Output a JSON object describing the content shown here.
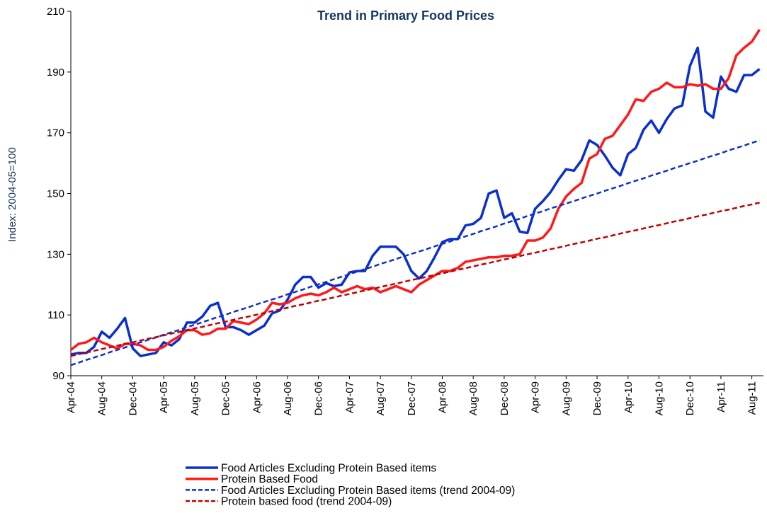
{
  "chart_data": {
    "type": "line",
    "title": "Trend in Primary Food Prices",
    "y_label": "Index: 2004-05=100",
    "categories": [
      "Apr-04",
      null,
      null,
      null,
      "Aug-04",
      null,
      null,
      null,
      "Dec-04",
      null,
      null,
      null,
      "Apr-05",
      null,
      null,
      null,
      "Aug-05",
      null,
      null,
      null,
      "Dec-05",
      null,
      null,
      null,
      "Apr-06",
      null,
      null,
      null,
      "Aug-06",
      null,
      null,
      null,
      "Dec-06",
      null,
      null,
      null,
      "Apr-07",
      null,
      null,
      null,
      "Aug-07",
      null,
      null,
      null,
      "Dec-07",
      null,
      null,
      null,
      "Apr-08",
      null,
      null,
      null,
      "Aug-08",
      null,
      null,
      null,
      "Dec-08",
      null,
      null,
      null,
      "Apr-09",
      null,
      null,
      null,
      "Aug-09",
      null,
      null,
      null,
      "Dec-09",
      null,
      null,
      null,
      "Apr-10",
      null,
      null,
      null,
      "Aug-10",
      null,
      null,
      null,
      "Dec-10",
      null,
      null,
      null,
      "Apr-11",
      null,
      null,
      null,
      "Aug-11",
      null
    ],
    "series": [
      {
        "name": "Food Articles Excluding Protein Based items",
        "color": "#0a2fd0",
        "dashed": false,
        "values": [
          97,
          97.5,
          97.5,
          99.5,
          104.5,
          102.5,
          105.5,
          109,
          99,
          96.5,
          97,
          97.5,
          101,
          100,
          102,
          107.5,
          107.5,
          109.5,
          113,
          114,
          106,
          106,
          105,
          103.5,
          105,
          106.5,
          110.5,
          111.5,
          115,
          120,
          122.5,
          122.5,
          119,
          120.5,
          119.5,
          120,
          124,
          124.5,
          124.5,
          129.5,
          132.5,
          132.5,
          132.5,
          130,
          124.5,
          122,
          124.5,
          129,
          134,
          135,
          135,
          139.5,
          140,
          142,
          150,
          151,
          142,
          143.5,
          137.5,
          137,
          145,
          147.5,
          150.5,
          154.5,
          158,
          157.5,
          161,
          167.5,
          166,
          162.5,
          158.5,
          156,
          163,
          165,
          171,
          174,
          170,
          174.5,
          178,
          179,
          192,
          198,
          177,
          175,
          188.5,
          184.5,
          183.5,
          189,
          189,
          191
        ]
      },
      {
        "name": "Protein Based Food",
        "color": "#ff1a1a",
        "dashed": false,
        "values": [
          98.5,
          100.5,
          101,
          102.5,
          101,
          100,
          99,
          100.5,
          100.5,
          100,
          98.5,
          98.5,
          99.5,
          101.5,
          103,
          105,
          105,
          103.5,
          104,
          105.5,
          105.5,
          108,
          107.5,
          107,
          108.5,
          110.5,
          114,
          113.5,
          114,
          115.5,
          116.5,
          117,
          116.5,
          117.5,
          119,
          117.5,
          118.5,
          119.5,
          118.5,
          119,
          117.5,
          118.5,
          119.5,
          118.5,
          117.5,
          120,
          121.5,
          123,
          124.5,
          124.5,
          125.5,
          127.5,
          128,
          128.5,
          129,
          129,
          129.5,
          129.5,
          130,
          134.5,
          134.5,
          135.5,
          138.5,
          145,
          149,
          151.5,
          153.5,
          161.5,
          163,
          168,
          169,
          172.5,
          176,
          181,
          180.5,
          183.5,
          184.5,
          186.5,
          185,
          185,
          186,
          185.5,
          186,
          184.5,
          184.5,
          188,
          195.5,
          198,
          200,
          204
        ]
      },
      {
        "name": "Food Articles Excluding Protein Based items (trend 2004-09)",
        "color": "#0a2fd0",
        "dashed": true,
        "values": [
          93.5,
          94.3,
          95.2,
          96.0,
          96.8,
          97.7,
          98.5,
          99.3,
          100.2,
          101.0,
          101.8,
          102.6,
          103.5,
          104.3,
          105.1,
          106.0,
          106.8,
          107.6,
          108.5,
          109.3,
          110.1,
          111.0,
          111.8,
          112.6,
          113.5,
          114.3,
          115.1,
          115.9,
          116.8,
          117.6,
          118.4,
          119.3,
          120.1,
          120.9,
          121.8,
          122.6,
          123.4,
          124.3,
          125.1,
          125.9,
          126.8,
          127.6,
          128.4,
          129.3,
          130.1,
          130.9,
          131.7,
          132.6,
          133.4,
          134.2,
          135.1,
          135.9,
          136.7,
          137.6,
          138.4,
          139.2,
          140.1,
          140.9,
          141.7,
          142.6,
          143.4,
          144.2,
          145.1,
          145.9,
          146.7,
          147.5,
          148.4,
          149.2,
          150.0,
          150.9,
          151.7,
          152.5,
          153.4,
          154.2,
          155.0,
          155.9,
          156.7,
          157.5,
          158.4,
          159.2,
          160.0,
          160.8,
          161.7,
          162.5,
          163.3,
          164.2,
          165.0,
          165.8,
          166.7,
          167.5
        ]
      },
      {
        "name": "Protein based food (trend 2004-09)",
        "color": "#c00000",
        "dashed": true,
        "values": [
          96.5,
          97.1,
          97.6,
          98.2,
          98.8,
          99.3,
          99.9,
          100.5,
          101.0,
          101.6,
          102.2,
          102.7,
          103.3,
          103.9,
          104.4,
          105.0,
          105.6,
          106.1,
          106.7,
          107.3,
          107.8,
          108.4,
          109.0,
          109.5,
          110.1,
          110.7,
          111.3,
          111.8,
          112.4,
          113.0,
          113.5,
          114.1,
          114.7,
          115.2,
          115.8,
          116.4,
          116.9,
          117.5,
          118.1,
          118.6,
          119.2,
          119.8,
          120.3,
          120.9,
          121.5,
          122.0,
          122.6,
          123.2,
          123.7,
          124.3,
          124.9,
          125.4,
          126.0,
          126.6,
          127.1,
          127.7,
          128.3,
          128.8,
          129.4,
          130.0,
          130.5,
          131.1,
          131.7,
          132.2,
          132.8,
          133.4,
          133.9,
          134.5,
          135.1,
          135.6,
          136.2,
          136.8,
          137.4,
          137.9,
          138.5,
          139.1,
          139.6,
          140.2,
          140.8,
          141.3,
          141.9,
          142.5,
          143.0,
          143.6,
          144.2,
          144.7,
          145.3,
          145.9,
          146.4,
          147.0
        ]
      }
    ],
    "ylim": [
      90,
      210
    ],
    "yticks": [
      90,
      110,
      130,
      150,
      170,
      190,
      210
    ],
    "grid": false,
    "legend": "bottom"
  }
}
